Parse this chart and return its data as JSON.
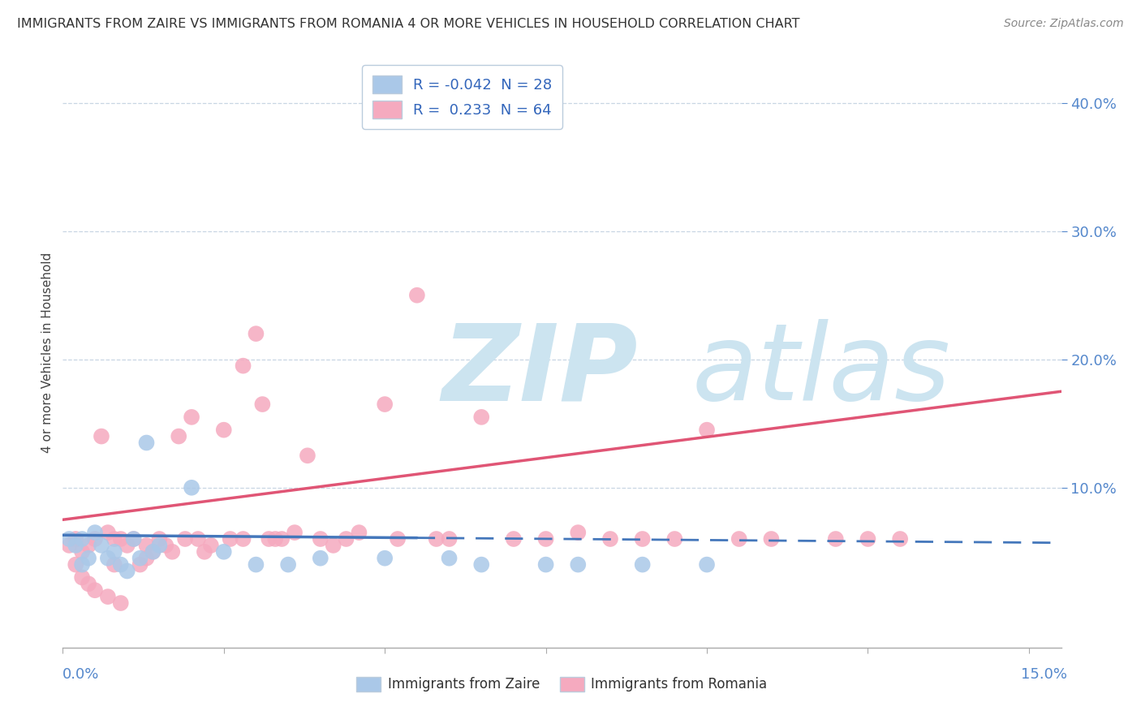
{
  "title": "IMMIGRANTS FROM ZAIRE VS IMMIGRANTS FROM ROMANIA 4 OR MORE VEHICLES IN HOUSEHOLD CORRELATION CHART",
  "source": "Source: ZipAtlas.com",
  "zaire_color": "#aac8e8",
  "romania_color": "#f5aabf",
  "zaire_line_color": "#4477bb",
  "romania_line_color": "#e05575",
  "watermark_color": "#cce4f0",
  "xlim": [
    0.0,
    0.155
  ],
  "ylim": [
    -0.025,
    0.435
  ],
  "zaire_R": -0.042,
  "zaire_N": 28,
  "romania_R": 0.233,
  "romania_N": 64,
  "zaire_x": [
    0.001,
    0.002,
    0.003,
    0.003,
    0.004,
    0.005,
    0.006,
    0.007,
    0.008,
    0.009,
    0.01,
    0.011,
    0.012,
    0.013,
    0.014,
    0.015,
    0.02,
    0.025,
    0.03,
    0.035,
    0.04,
    0.05,
    0.06,
    0.065,
    0.075,
    0.08,
    0.09,
    0.1
  ],
  "zaire_y": [
    0.06,
    0.055,
    0.04,
    0.06,
    0.045,
    0.065,
    0.055,
    0.045,
    0.05,
    0.04,
    0.035,
    0.06,
    0.045,
    0.135,
    0.05,
    0.055,
    0.1,
    0.05,
    0.04,
    0.04,
    0.045,
    0.045,
    0.045,
    0.04,
    0.04,
    0.04,
    0.04,
    0.04
  ],
  "romania_x": [
    0.001,
    0.002,
    0.003,
    0.004,
    0.005,
    0.006,
    0.007,
    0.008,
    0.008,
    0.009,
    0.01,
    0.011,
    0.012,
    0.013,
    0.013,
    0.014,
    0.015,
    0.016,
    0.017,
    0.018,
    0.019,
    0.02,
    0.021,
    0.022,
    0.023,
    0.025,
    0.026,
    0.028,
    0.028,
    0.03,
    0.031,
    0.032,
    0.033,
    0.034,
    0.036,
    0.038,
    0.04,
    0.042,
    0.044,
    0.046,
    0.05,
    0.052,
    0.055,
    0.058,
    0.06,
    0.065,
    0.07,
    0.075,
    0.08,
    0.085,
    0.09,
    0.095,
    0.1,
    0.105,
    0.11,
    0.12,
    0.125,
    0.13,
    0.002,
    0.003,
    0.004,
    0.005,
    0.007,
    0.009
  ],
  "romania_y": [
    0.055,
    0.06,
    0.05,
    0.055,
    0.06,
    0.14,
    0.065,
    0.06,
    0.04,
    0.06,
    0.055,
    0.06,
    0.04,
    0.045,
    0.055,
    0.05,
    0.06,
    0.055,
    0.05,
    0.14,
    0.06,
    0.155,
    0.06,
    0.05,
    0.055,
    0.145,
    0.06,
    0.06,
    0.195,
    0.22,
    0.165,
    0.06,
    0.06,
    0.06,
    0.065,
    0.125,
    0.06,
    0.055,
    0.06,
    0.065,
    0.165,
    0.06,
    0.25,
    0.06,
    0.06,
    0.155,
    0.06,
    0.06,
    0.065,
    0.06,
    0.06,
    0.06,
    0.145,
    0.06,
    0.06,
    0.06,
    0.06,
    0.06,
    0.04,
    0.03,
    0.025,
    0.02,
    0.015,
    0.01
  ],
  "zaire_line_x0": 0.0,
  "zaire_line_x_solid_end": 0.055,
  "zaire_line_x1": 0.155,
  "zaire_line_y0": 0.063,
  "zaire_line_y1": 0.057,
  "romania_line_x0": 0.0,
  "romania_line_x1": 0.155,
  "romania_line_y0": 0.075,
  "romania_line_y1": 0.175
}
